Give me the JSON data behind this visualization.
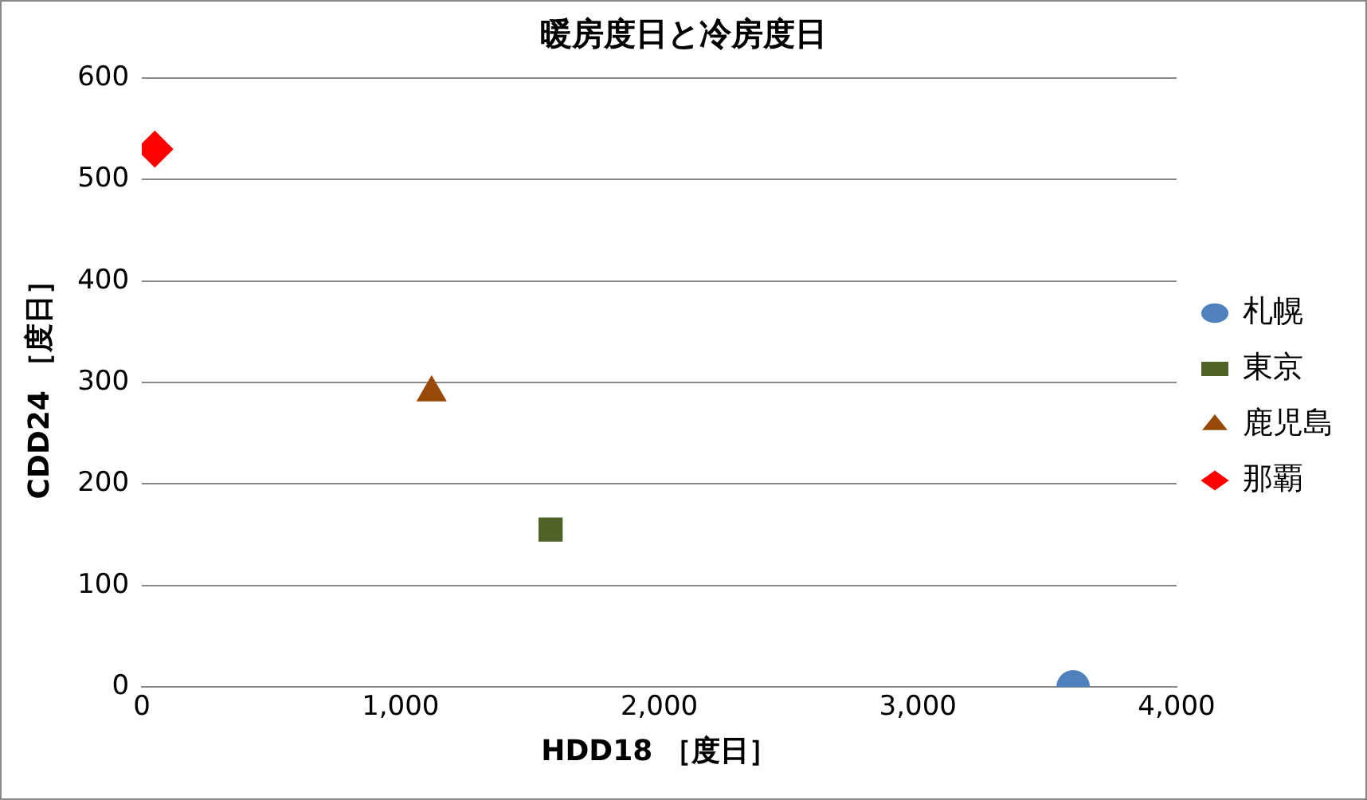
{
  "chart_data": {
    "type": "scatter",
    "title": "暖房度日と冷房度日",
    "xlabel": "HDD18 ［度日］",
    "ylabel": "CDD24 ［度日］",
    "series": [
      {
        "name": "札幌",
        "color": "#4f81bd",
        "marker": "circle",
        "x": [
          3600
        ],
        "values": [
          0
        ]
      },
      {
        "name": "東京",
        "color": "#4f6228",
        "marker": "square",
        "x": [
          1580
        ],
        "values": [
          155
        ]
      },
      {
        "name": "鹿児島",
        "color": "#984807",
        "marker": "triangle",
        "x": [
          1120
        ],
        "values": [
          290
        ]
      },
      {
        "name": "那覇",
        "color": "#ff0000",
        "marker": "diamond",
        "x": [
          50
        ],
        "values": [
          530
        ]
      }
    ],
    "xlim": [
      0,
      4000
    ],
    "xticks": [
      0,
      {
        "value": 1000,
        "label": "1,000"
      },
      {
        "value": 2000,
        "label": "2,000"
      },
      {
        "value": 3000,
        "label": "3,000"
      },
      {
        "value": 4000,
        "label": "4,000"
      }
    ],
    "ylim": [
      0,
      600
    ],
    "yticks": [
      0,
      100,
      200,
      300,
      400,
      500,
      600
    ],
    "grid": "y",
    "legend": "right"
  }
}
